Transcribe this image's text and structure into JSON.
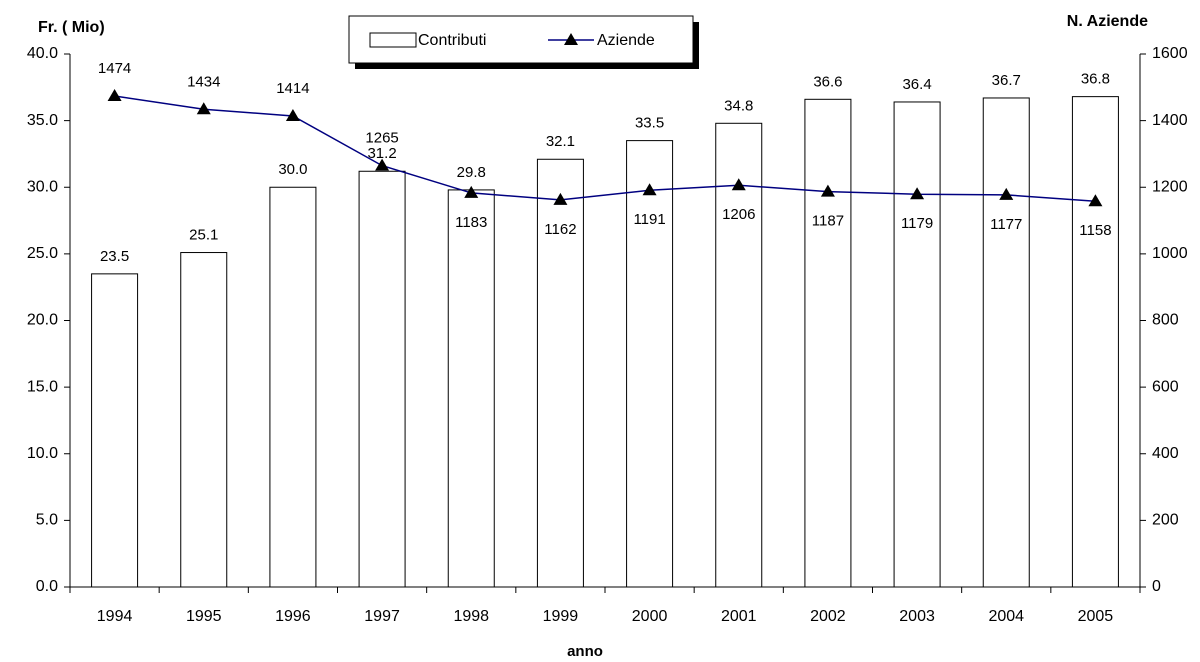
{
  "chart_data": {
    "type": "bar",
    "y_label": "Fr. ( Mio)",
    "y2_label": "N. Aziende",
    "x_label": "anno",
    "categories": [
      "1994",
      "1995",
      "1996",
      "1997",
      "1998",
      "1999",
      "2000",
      "2001",
      "2002",
      "2003",
      "2004",
      "2005"
    ],
    "series": [
      {
        "name": "Contributi",
        "type": "bar",
        "color": "#ffffff",
        "values": [
          23.5,
          25.1,
          30.0,
          31.2,
          29.8,
          32.1,
          33.5,
          34.8,
          36.6,
          36.4,
          36.7,
          36.8
        ],
        "value_labels": [
          "23.5",
          "25.1",
          "30.0",
          "31.2",
          "29.8",
          "32.1",
          "33.5",
          "34.8",
          "36.6",
          "36.4",
          "36.7",
          "36.8"
        ]
      },
      {
        "name": "Aziende",
        "type": "line",
        "axis": "y2",
        "color": "#000080",
        "values": [
          1474,
          1434,
          1414,
          1265,
          1183,
          1162,
          1191,
          1206,
          1187,
          1179,
          1177,
          1158
        ]
      }
    ],
    "ylim": [
      0,
      40
    ],
    "yticks": [
      {
        "value": 0,
        "label": "0.0"
      },
      {
        "value": 5,
        "label": "5.0"
      },
      {
        "value": 10,
        "label": "10.0"
      },
      {
        "value": 15,
        "label": "15.0"
      },
      {
        "value": 20,
        "label": "20.0"
      },
      {
        "value": 25,
        "label": "25.0"
      },
      {
        "value": 30,
        "label": "30.0"
      },
      {
        "value": 35,
        "label": "35.0"
      },
      {
        "value": 40,
        "label": "40.0"
      }
    ],
    "y2lim": [
      0,
      1600
    ],
    "y2ticks": [
      0,
      200,
      400,
      600,
      800,
      1000,
      1200,
      1400,
      1600
    ],
    "grid": false
  }
}
